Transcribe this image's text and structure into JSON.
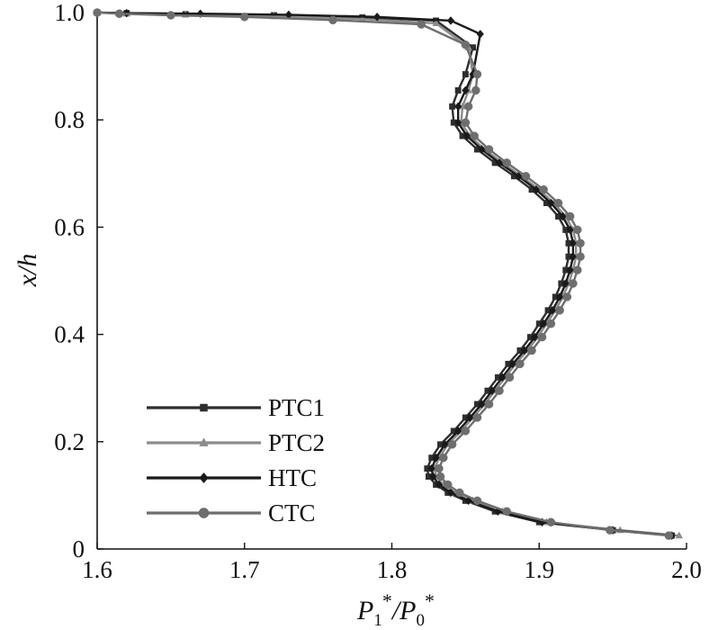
{
  "chart_data": {
    "type": "line",
    "title": "",
    "xlabel": {
      "P": "P",
      "sub1": "1",
      "star": "*",
      "slash": "/",
      "sub0": "0"
    },
    "ylabel": "x/h",
    "xlim": [
      1.6,
      2.0
    ],
    "ylim": [
      0,
      1.0
    ],
    "xticks": [
      1.6,
      1.7,
      1.8,
      1.9,
      2.0
    ],
    "xtick_labels": [
      "1.6",
      "1.7",
      "1.8",
      "1.9",
      "2.0"
    ],
    "yticks": [
      0,
      0.2,
      0.4,
      0.6,
      0.8,
      1.0
    ],
    "ytick_labels": [
      "0",
      "0.2",
      "0.4",
      "0.6",
      "0.8",
      "1.0"
    ],
    "grid": false,
    "legend_position": "bottom-left",
    "series": [
      {
        "name": "PTC1",
        "color": "#2e2e2e",
        "marker": "square",
        "x": [
          1.99,
          1.95,
          1.9,
          1.87,
          1.85,
          1.838,
          1.83,
          1.825,
          1.824,
          1.827,
          1.833,
          1.842,
          1.85,
          1.858,
          1.865,
          1.872,
          1.879,
          1.887,
          1.894,
          1.9,
          1.906,
          1.911,
          1.915,
          1.918,
          1.92,
          1.92,
          1.918,
          1.913,
          1.905,
          1.895,
          1.883,
          1.87,
          1.858,
          1.848,
          1.842,
          1.841,
          1.845,
          1.85,
          1.855,
          1.83,
          1.78,
          1.72,
          1.66,
          1.62,
          1.6
        ],
        "y": [
          0.025,
          0.035,
          0.05,
          0.07,
          0.09,
          0.105,
          0.12,
          0.135,
          0.15,
          0.17,
          0.195,
          0.22,
          0.245,
          0.27,
          0.295,
          0.32,
          0.345,
          0.37,
          0.395,
          0.42,
          0.445,
          0.47,
          0.495,
          0.52,
          0.545,
          0.57,
          0.595,
          0.62,
          0.645,
          0.67,
          0.695,
          0.72,
          0.745,
          0.77,
          0.795,
          0.825,
          0.855,
          0.885,
          0.935,
          0.985,
          0.991,
          0.995,
          0.997,
          0.999,
          1.0
        ]
      },
      {
        "name": "PTC2",
        "color": "#8c8c8c",
        "marker": "triangle",
        "x": [
          1.995,
          1.955,
          1.905,
          1.875,
          1.855,
          1.843,
          1.835,
          1.83,
          1.829,
          1.832,
          1.838,
          1.847,
          1.855,
          1.863,
          1.87,
          1.877,
          1.884,
          1.892,
          1.899,
          1.905,
          1.911,
          1.916,
          1.92,
          1.923,
          1.925,
          1.925,
          1.923,
          1.918,
          1.91,
          1.9,
          1.888,
          1.875,
          1.863,
          1.853,
          1.847,
          1.848,
          1.852,
          1.855,
          1.852,
          1.83,
          1.78,
          1.72,
          1.66,
          1.62,
          1.6
        ],
        "y": [
          0.025,
          0.035,
          0.05,
          0.07,
          0.09,
          0.105,
          0.12,
          0.135,
          0.15,
          0.17,
          0.195,
          0.22,
          0.245,
          0.27,
          0.295,
          0.32,
          0.345,
          0.37,
          0.395,
          0.42,
          0.445,
          0.47,
          0.495,
          0.52,
          0.545,
          0.57,
          0.595,
          0.62,
          0.645,
          0.67,
          0.695,
          0.72,
          0.745,
          0.77,
          0.795,
          0.825,
          0.855,
          0.885,
          0.935,
          0.98,
          0.988,
          0.993,
          0.996,
          0.998,
          1.0
        ]
      },
      {
        "name": "HTC",
        "color": "#1a1a1a",
        "marker": "diamond",
        "x": [
          1.99,
          1.95,
          1.902,
          1.872,
          1.852,
          1.84,
          1.832,
          1.828,
          1.827,
          1.83,
          1.836,
          1.845,
          1.853,
          1.861,
          1.868,
          1.875,
          1.882,
          1.89,
          1.897,
          1.903,
          1.909,
          1.914,
          1.918,
          1.921,
          1.923,
          1.923,
          1.921,
          1.916,
          1.908,
          1.898,
          1.886,
          1.873,
          1.861,
          1.851,
          1.845,
          1.845,
          1.85,
          1.855,
          1.86,
          1.84,
          1.79,
          1.73,
          1.67,
          1.62,
          1.6
        ],
        "y": [
          0.025,
          0.035,
          0.05,
          0.07,
          0.09,
          0.105,
          0.12,
          0.135,
          0.15,
          0.17,
          0.195,
          0.22,
          0.245,
          0.27,
          0.295,
          0.32,
          0.345,
          0.37,
          0.395,
          0.42,
          0.445,
          0.47,
          0.495,
          0.52,
          0.545,
          0.57,
          0.595,
          0.62,
          0.645,
          0.67,
          0.695,
          0.72,
          0.745,
          0.77,
          0.795,
          0.825,
          0.855,
          0.885,
          0.96,
          0.985,
          0.992,
          0.996,
          0.998,
          0.999,
          1.0
        ]
      },
      {
        "name": "CTC",
        "color": "#6e6e6e",
        "marker": "circle",
        "x": [
          1.988,
          1.948,
          1.908,
          1.878,
          1.858,
          1.846,
          1.838,
          1.833,
          1.832,
          1.835,
          1.841,
          1.85,
          1.858,
          1.866,
          1.873,
          1.88,
          1.887,
          1.895,
          1.902,
          1.908,
          1.914,
          1.919,
          1.923,
          1.926,
          1.928,
          1.928,
          1.926,
          1.921,
          1.913,
          1.903,
          1.891,
          1.878,
          1.866,
          1.856,
          1.85,
          1.852,
          1.857,
          1.858,
          1.85,
          1.82,
          1.76,
          1.7,
          1.65,
          1.615,
          1.6
        ],
        "y": [
          0.025,
          0.035,
          0.05,
          0.07,
          0.09,
          0.105,
          0.12,
          0.135,
          0.15,
          0.17,
          0.195,
          0.22,
          0.245,
          0.27,
          0.295,
          0.32,
          0.345,
          0.37,
          0.395,
          0.42,
          0.445,
          0.47,
          0.495,
          0.52,
          0.545,
          0.57,
          0.595,
          0.62,
          0.645,
          0.67,
          0.695,
          0.72,
          0.745,
          0.77,
          0.795,
          0.825,
          0.855,
          0.885,
          0.94,
          0.978,
          0.986,
          0.992,
          0.995,
          0.998,
          1.0
        ]
      }
    ]
  }
}
